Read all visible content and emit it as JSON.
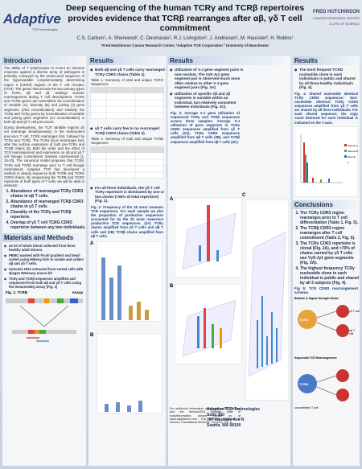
{
  "header": {
    "title": "Deep sequencing of the human TCRγ and TCRβ repertoires provides evidence that TCRβ rearranges after αβ, γδ T cell commitment",
    "authors": "C.S. Carlson¹, A. Sherwood², C. Desmarais², R.J. Livingston², J. Andriesen², M. Haussler², H. Robins¹",
    "affiliations": "¹Fred Hutchinson Cancer Research Center, ²Adaptive TCR Corporation ³ University of Manchester",
    "left_logo": {
      "name": "Adaptive",
      "tagline": "TCR technologies"
    },
    "right_logo": {
      "name": "FRED HUTCHINSON",
      "subname": "CANCER RESEARCH CENTER",
      "tagline": "A LIFE OF SCIENCE"
    }
  },
  "introduction": {
    "heading": "Introduction",
    "paragraphs": [
      "The ability of T lymphocytes to mount an immune response against a diverse array of pathogens is primarily conveyed by the amino-acid sequence of the hypervariable complementarity determining region 3 (CDR3) regions of the T cell receptor (TCR). The genes that encode the two primary types of TCRs, αβ and γδ, undergo somatic rearrangement during T cell development. TCRG and TCRB genes are assembled via recombination of variable (V), diversity (D) and joining (J) gene segments (VDJ recombination) and similarly the TCRα and TCRγ genes by recombination of variable and joining gene segments (VJ recombination) in both αβ and γδ T cell precursors.",
      "During development, the TCR variable regions do not rearrange simultaneously; in the multi-potent precursor T cell, TCRδ rearranges first, followed by TCRγ and TCRβ. The TCRα locus rearranges last, after the surface expression of both pre-TCRs and TCRβ chains [2]. Both the order and the effect of TCR rearrangement and expression on αβ and γδ T cell lineage commitment remains controversial [1, 15-23]. The canonical model proposes that TCRβ, TCRγ and TCRδ rearrange prior to T cell lineage commitment. Adaptive TCR has developed a method to deeply sequence both TCRB and TCRG CDR3 chains. By sequencing the TCRB and TCRG repertoire of both types of T cells, we will be able to estimate:"
    ],
    "aims": [
      "Abundance of rearranged TCRγ CDR3 chains in αβ T cells.",
      "Abundance of rearranged TCRβ CDR3 chains in γδ T cells",
      "Clonality of the TCRγ and TCRβ repertoire.",
      "Overlap of γδ T cell TCRG CDR3 repertoire between any two individuals."
    ]
  },
  "methods": {
    "heading": "Materials and Methods",
    "bullets": [
      "40 ml of whole blood collected from three healthy adult donors.",
      "PBMC washed with Ficoll gradient and bead-sorted using Miltenyi kits to isolate and collect αβ and γδ T cells.",
      "Genomic DNA extracted from sorted cells with Qiagen DNAeasy macro-kit",
      "TCRγ and TCRβ sequences amplified and sequenced from both αβ and γδ T cells using the ImmunoSEQ assay (Fig. 1)"
    ],
    "figure1": {
      "label": "Fig. 1: TCRB",
      "assay": "Assay"
    }
  },
  "results1": {
    "heading": "Results",
    "bullet1": "Both αβ and γδ T cells carry rearranged TCRγ CDR3 chains (Table 1).",
    "table1_caption": "Table 1: Summary of total and unique TCRG Sequences",
    "bullet2": "γδ T cells carry few to no rearranged TCRβ CDR3 chains (Table 2).",
    "table2_caption": "Table 2. Summary of total and unique TCRB Sequences",
    "bullet3": "For all three individuals, the γδ T cell TCRγ repertoire is dominated by one or two clones (>50% of total repertoire) (Fig. 2).",
    "figure2_caption": "Fig. 2: Frequency of the 25 most common TCR sequences. For each sample we plot the proportion of productive sequences accounted for by the 25 most numerous productive TCR sequences. (2A) TCRγ chains amplified from γδ T cells and αβ T cells and (2B) TCRβ chains amplified from αβ T cells.",
    "panels": [
      "A",
      "B"
    ]
  },
  "results2": {
    "heading": "Results",
    "bullets": [
      "Utilization of V-J gene segment pairs is non-random. The Vγ9-Jγ1 gene segment pair is observed much more often relative to other V-J gene segment pairs (Fig. 3A).",
      "Utilization of specific Vβ and Jβ segments is variable within an individual, but relatively consistent between individuals (Fig. 3C)."
    ],
    "figure3_caption": "Fig. 3: Average V-J gene utilization of sequenced TCRγ and TCRβ sequences across three samples: Average V-J utilization of gene segments in TCRγ CDR3 sequences amplified from γδ T cells (3A), TCRγ CDR3 sequences amplified from αβ T cells (3B), and TCRβ sequences amplified from αβ T cells (3C).",
    "panels": [
      "A",
      "B",
      "C"
    ],
    "footnote": "For additional information about immunoSEQ assays and the immunoSEQ Analyzer suite of tools/information, please contact us at www.adaptivetcr.com. This work is published in Science Translational Medicine, Oct 2011, Vol. 3.",
    "address": [
      "Adaptive TCR Technologies",
      "Suite 300",
      "307 Westlake Ave N",
      "Seattle, WA 98109"
    ]
  },
  "results3": {
    "heading": "Results",
    "bullet": "The most frequent TCRG nucleotide clone in each individuals is public and shared by all three healthy individuals (Fig. 4).",
    "figure4_caption": "Fig. 4. Shared nucleotide identical TCRγ CDR3 sequences: Non-nucleotide identical TCRγ CDR3 sequences amplified from γδ T cells are shared by all three individuals. For each shared sequence, the copy count detected for each individual is indicated on the Y-axis.",
    "legend": [
      "Sample A",
      "Sample B",
      "Sample C"
    ]
  },
  "conclusions": {
    "heading": "Conclusions",
    "items": [
      "The TCRγ CDR3 region rearranges prior to T cell differentiation (Table 1, Fig. 5).",
      "The TCRβ CDR3 region rearranges after T cell commitment (Table 2, Fig. 5).",
      "The TCRγ CDR3 repertoire is clonal (Fig. 2A), and >70% of chains carried by γδ T cells use Vγ9-Jγ1 gene segments (Fig. 3A).",
      "The highest frequency TCRγ nucleotide clone in each individual is public and shared by all 3 subjects (Fig. 4)."
    ],
    "figure5_caption": "Fig 5: TCR CDR3 rearrangement schema",
    "diagram": {
      "model1": "Biallelic & Signal Strength Model",
      "model2": "Sequential TCR Rearrangement",
      "tcrg": "TCRG",
      "tcrb": "TCRB",
      "gd": "γδ T cell",
      "ab": "αβ T cell",
      "uncommitted": "uncommitted T cell"
    }
  }
}
